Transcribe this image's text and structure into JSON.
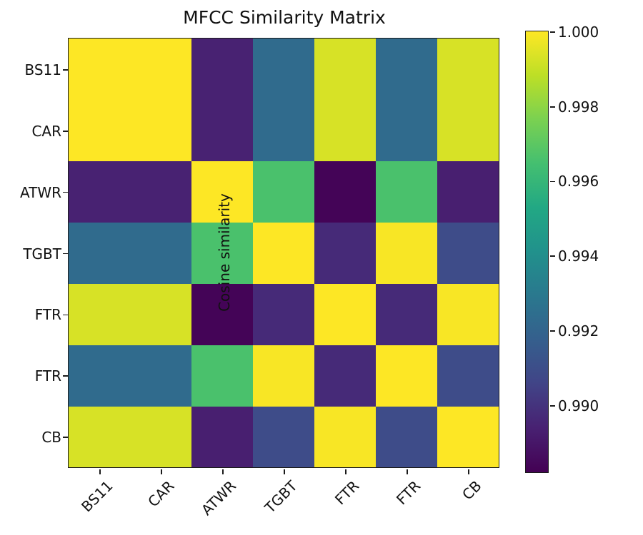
{
  "chart_data": {
    "type": "heatmap",
    "title": "MFCC Similarity Matrix",
    "x_labels": [
      "BS11",
      "CAR",
      "ATWR",
      "TGBT",
      "FTR",
      "FTR",
      "CB"
    ],
    "y_labels": [
      "BS11",
      "CAR",
      "ATWR",
      "TGBT",
      "FTR",
      "FTR",
      "CB"
    ],
    "matrix": [
      [
        1.0,
        1.0,
        0.9894,
        0.9923,
        0.9993,
        0.9923,
        0.9993
      ],
      [
        1.0,
        1.0,
        0.9894,
        0.9923,
        0.9993,
        0.9923,
        0.9993
      ],
      [
        0.9894,
        0.9894,
        1.0,
        0.9966,
        0.9883,
        0.9966,
        0.9893
      ],
      [
        0.9923,
        0.9923,
        0.9966,
        1.0,
        0.9897,
        0.9999,
        0.9909
      ],
      [
        0.9993,
        0.9993,
        0.9883,
        0.9897,
        1.0,
        0.9897,
        0.9999
      ],
      [
        0.9923,
        0.9923,
        0.9966,
        0.9999,
        0.9897,
        1.0,
        0.9909
      ],
      [
        0.9993,
        0.9993,
        0.9893,
        0.9909,
        0.9999,
        0.9909,
        1.0
      ]
    ],
    "vmin": 0.9882,
    "vmax": 1.0,
    "colormap": "viridis",
    "viridis_stops": [
      "#440154",
      "#482172",
      "#414487",
      "#355f8d",
      "#2a788e",
      "#21918c",
      "#22a884",
      "#44bf70",
      "#7ad151",
      "#bddf26",
      "#fde725"
    ],
    "colorbar": {
      "label": "Cosine similarity",
      "tick_labels": [
        "1.000",
        "0.998",
        "0.996",
        "0.994",
        "0.992",
        "0.990"
      ],
      "tick_values": [
        1.0,
        0.998,
        0.996,
        0.994,
        0.992,
        0.99
      ]
    },
    "axis_color": "#1a1a1a",
    "text_color": "#111111",
    "background_color": "#ffffff",
    "legend_position": "right-colorbar",
    "grid": false
  }
}
